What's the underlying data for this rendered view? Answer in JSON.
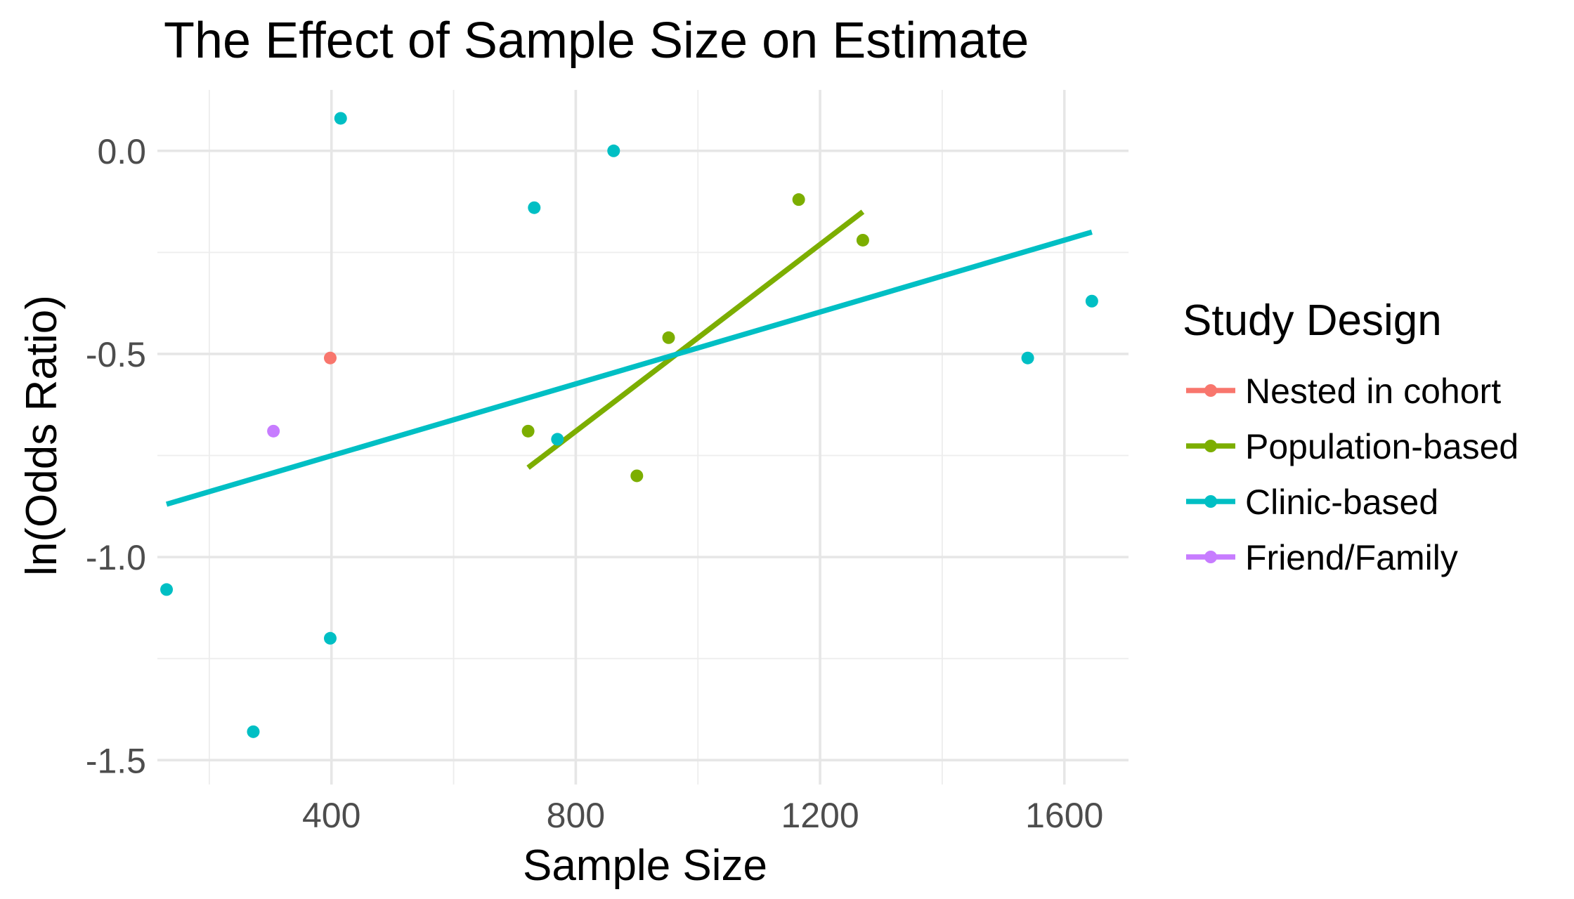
{
  "chart_data": {
    "type": "scatter",
    "title": "The Effect of Sample Size on Estimate",
    "xlabel": "Sample Size",
    "ylabel": "ln(Odds Ratio)",
    "xlim": [
      115,
      1705
    ],
    "ylim": [
      -1.56,
      0.15
    ],
    "x_ticks": [
      400,
      800,
      1200,
      1600
    ],
    "y_ticks": [
      0.0,
      -0.5,
      -1.0,
      -1.5
    ],
    "x_tick_labels": [
      "400",
      "800",
      "1200",
      "1600"
    ],
    "y_tick_labels": [
      "0.0",
      "-0.5",
      "-1.0",
      "-1.5"
    ],
    "grid": true,
    "legend_position": "right",
    "legend_title": "Study Design",
    "series": [
      {
        "name": "Nested in cohort",
        "color": "#F8766D",
        "points": [
          {
            "x": 398,
            "y": -0.51
          }
        ]
      },
      {
        "name": "Population-based",
        "color": "#7CAE00",
        "points": [
          {
            "x": 722,
            "y": -0.69
          },
          {
            "x": 900,
            "y": -0.8
          },
          {
            "x": 952,
            "y": -0.46
          },
          {
            "x": 1165,
            "y": -0.12
          },
          {
            "x": 1270,
            "y": -0.22
          }
        ],
        "trend": {
          "x": [
            722,
            1270
          ],
          "y": [
            -0.78,
            -0.15
          ]
        }
      },
      {
        "name": "Clinic-based",
        "color": "#00BFC4",
        "points": [
          {
            "x": 130,
            "y": -1.08
          },
          {
            "x": 272,
            "y": -1.43
          },
          {
            "x": 398,
            "y": -1.2
          },
          {
            "x": 415,
            "y": 0.08
          },
          {
            "x": 732,
            "y": -0.14
          },
          {
            "x": 770,
            "y": -0.71
          },
          {
            "x": 862,
            "y": 0.0
          },
          {
            "x": 1540,
            "y": -0.51
          },
          {
            "x": 1645,
            "y": -0.37
          }
        ],
        "trend": {
          "x": [
            130,
            1645
          ],
          "y": [
            -0.87,
            -0.2
          ]
        }
      },
      {
        "name": "Friend/Family",
        "color": "#C77CFF",
        "points": [
          {
            "x": 305,
            "y": -0.69
          }
        ]
      }
    ]
  }
}
